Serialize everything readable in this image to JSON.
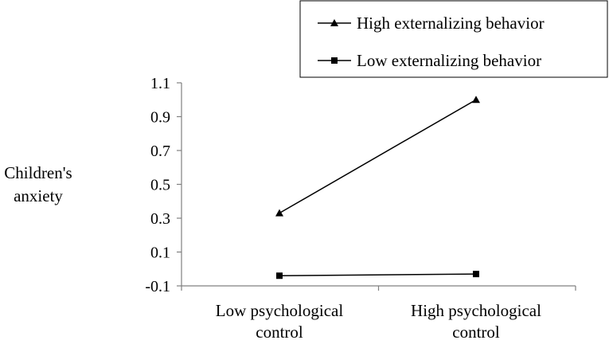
{
  "chart_data": {
    "type": "line",
    "categories": [
      [
        "Low psychological",
        "control"
      ],
      [
        "High psychological",
        "control"
      ]
    ],
    "series": [
      {
        "name": "High externalizing behavior",
        "marker": "triangle",
        "values": [
          0.33,
          1.0
        ]
      },
      {
        "name": "Low externalizing behavior",
        "marker": "square",
        "values": [
          -0.04,
          -0.03
        ]
      }
    ],
    "ylabel": [
      "Children's",
      "anxiety"
    ],
    "ylim": [
      -0.1,
      1.1
    ],
    "yticks": [
      "-0.1",
      "0.1",
      "0.3",
      "0.5",
      "0.7",
      "0.9",
      "1.1"
    ],
    "grid": false,
    "legend_position": "top-right",
    "line_color": "#000000"
  }
}
